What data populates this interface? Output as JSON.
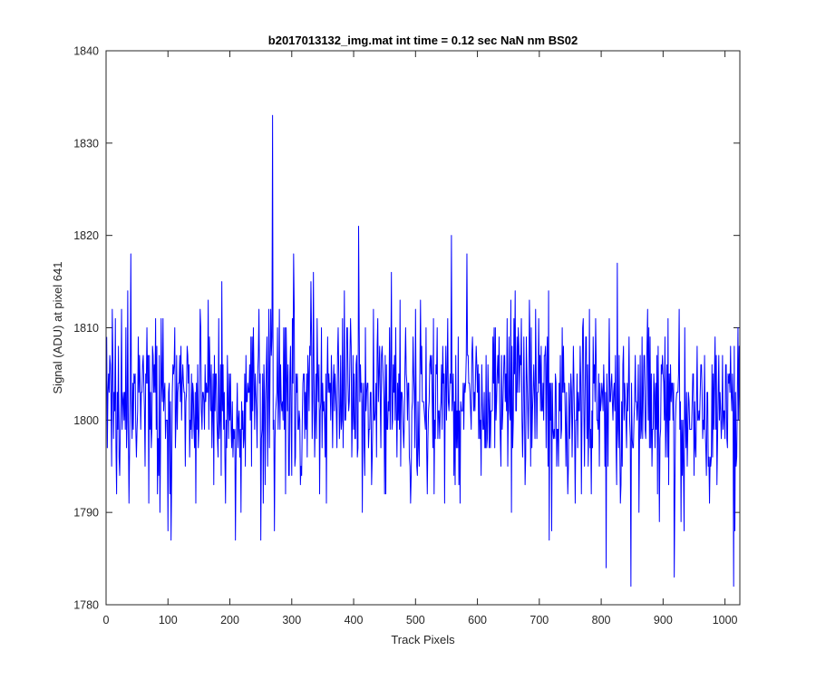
{
  "figure": {
    "background": "#ffffff"
  },
  "chart_data": {
    "type": "line",
    "title": "b2017013132_img.mat int time = 0.12 sec  NaN nm BS02",
    "xlabel": "Track Pixels",
    "ylabel": "Signal (ADU) at pixel 641",
    "xlim": [
      0,
      1024
    ],
    "ylim": [
      1780,
      1840
    ],
    "xticks": [
      0,
      100,
      200,
      300,
      400,
      500,
      600,
      700,
      800,
      900,
      1000
    ],
    "yticks": [
      1780,
      1790,
      1800,
      1810,
      1820,
      1830,
      1840
    ],
    "grid": false,
    "box": true,
    "legend": "none",
    "series": [
      {
        "color": "#0000ff",
        "x_start": 1,
        "x_step": 1,
        "count": 1024,
        "mean": 1802,
        "noise_range": [
          1787,
          1818
        ],
        "noted_points": [
          {
            "x": 269,
            "y": 1833
          },
          {
            "x": 408,
            "y": 1821
          },
          {
            "x": 558,
            "y": 1820
          },
          {
            "x": 250,
            "y": 1787
          },
          {
            "x": 209,
            "y": 1787
          },
          {
            "x": 716,
            "y": 1787
          },
          {
            "x": 808,
            "y": 1784
          },
          {
            "x": 848,
            "y": 1782
          },
          {
            "x": 918,
            "y": 1783
          },
          {
            "x": 1014,
            "y": 1782
          },
          {
            "x": 100,
            "y": 1788
          },
          {
            "x": 40,
            "y": 1818
          },
          {
            "x": 303,
            "y": 1818
          }
        ]
      }
    ]
  }
}
